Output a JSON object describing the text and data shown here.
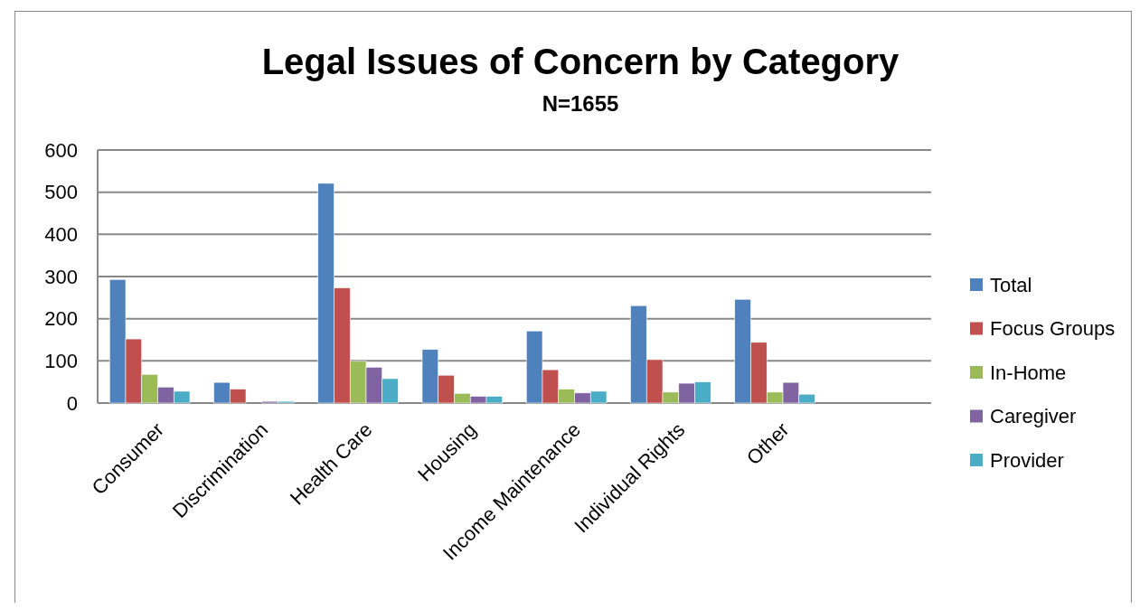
{
  "chart_data": {
    "type": "bar",
    "title": "Legal Issues of Concern by Category",
    "subtitle": "N=1655",
    "categories": [
      "Consumer",
      "Discrimination",
      "Health Care",
      "Housing",
      "Income Maintenance",
      "Individual Rights",
      "Other",
      null
    ],
    "series": [
      {
        "name": "Total",
        "color": "#4f81bd",
        "values": [
          293,
          49,
          521,
          127,
          171,
          231,
          246,
          null
        ]
      },
      {
        "name": "Focus Groups",
        "color": "#c0504d",
        "values": [
          152,
          33,
          273,
          66,
          79,
          103,
          144,
          null
        ]
      },
      {
        "name": "In-Home",
        "color": "#9bbb59",
        "values": [
          68,
          0,
          99,
          23,
          33,
          26,
          26,
          null
        ]
      },
      {
        "name": "Caregiver",
        "color": "#8064a2",
        "values": [
          38,
          4,
          85,
          16,
          24,
          47,
          49,
          null
        ]
      },
      {
        "name": "Provider",
        "color": "#4bacc6",
        "values": [
          28,
          4,
          58,
          16,
          28,
          50,
          21,
          null
        ]
      }
    ],
    "ylim": [
      0,
      600
    ],
    "yticks": [
      0,
      100,
      200,
      300,
      400,
      500,
      600
    ],
    "grid": "y",
    "legend": "right"
  }
}
